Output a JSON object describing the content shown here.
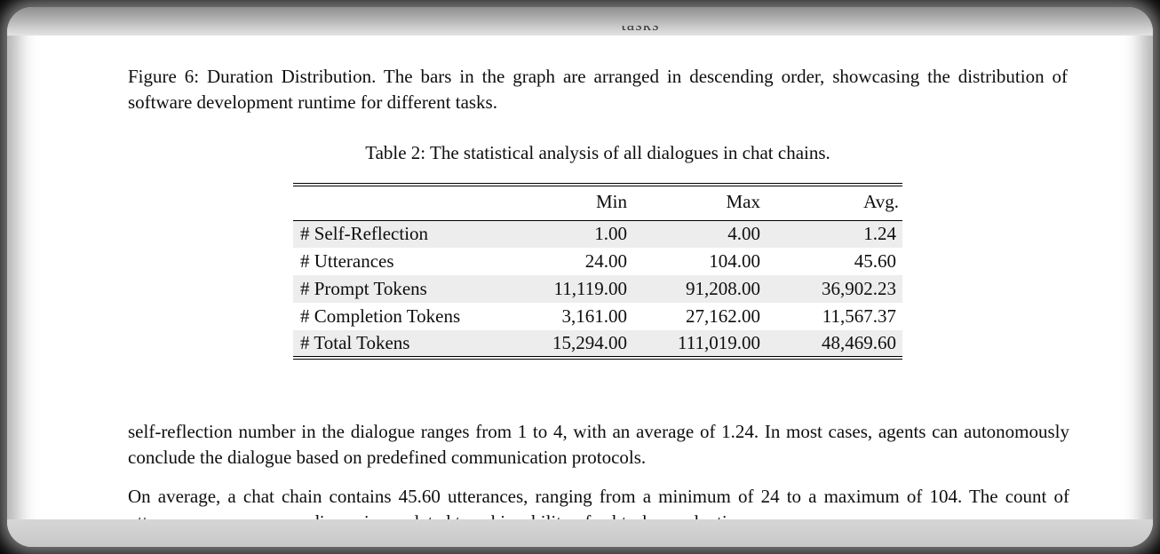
{
  "frame": {
    "background_color": "#000000",
    "card_color": "#ffffff",
    "top_fragment_text": "tasks"
  },
  "figure_caption": {
    "text": "Figure 6: Duration Distribution. The bars in the graph are arranged in descending order, showcasing the distribution of software development runtime for different tasks."
  },
  "table": {
    "caption": "Table 2: The statistical analysis of all dialogues in chat chains.",
    "columns": {
      "label": "",
      "min": "Min",
      "max": "Max",
      "avg": "Avg."
    },
    "row_shade_color": "#ededed",
    "rows": [
      {
        "label": "# Self-Reflection",
        "min": "1.00",
        "max": "4.00",
        "avg": "1.24"
      },
      {
        "label": "# Utterances",
        "min": "24.00",
        "max": "104.00",
        "avg": "45.60"
      },
      {
        "label": "# Prompt Tokens",
        "min": "11,119.00",
        "max": "91,208.00",
        "avg": "36,902.23"
      },
      {
        "label": "# Completion Tokens",
        "min": "3,161.00",
        "max": "27,162.00",
        "avg": "11,567.37"
      },
      {
        "label": "# Total Tokens",
        "min": "15,294.00",
        "max": "111,019.00",
        "avg": "48,469.60"
      }
    ]
  },
  "chart_data": {
    "type": "table",
    "title": "Table 2: The statistical analysis of all dialogues in chat chains.",
    "columns": [
      "",
      "Min",
      "Max",
      "Avg."
    ],
    "rows": [
      [
        "# Self-Reflection",
        1.0,
        4.0,
        1.24
      ],
      [
        "# Utterances",
        24.0,
        104.0,
        45.6
      ],
      [
        "# Prompt Tokens",
        11119.0,
        91208.0,
        36902.23
      ],
      [
        "# Completion Tokens",
        3161.0,
        27162.0,
        11567.37
      ],
      [
        "# Total Tokens",
        15294.0,
        111019.0,
        48469.6
      ]
    ]
  },
  "paragraphs": {
    "p1": "self-reflection number in the dialogue ranges from 1 to 4, with an average of 1.24. In most cases, agents can autonomously conclude the dialogue based on predefined communication protocols.",
    "p2": "On average, a chat chain contains 45.60 utterances, ranging from a minimum of 24 to a maximum of 104. The count of utterances encompasses discussions related to achievability of subtasks, evaluations"
  }
}
